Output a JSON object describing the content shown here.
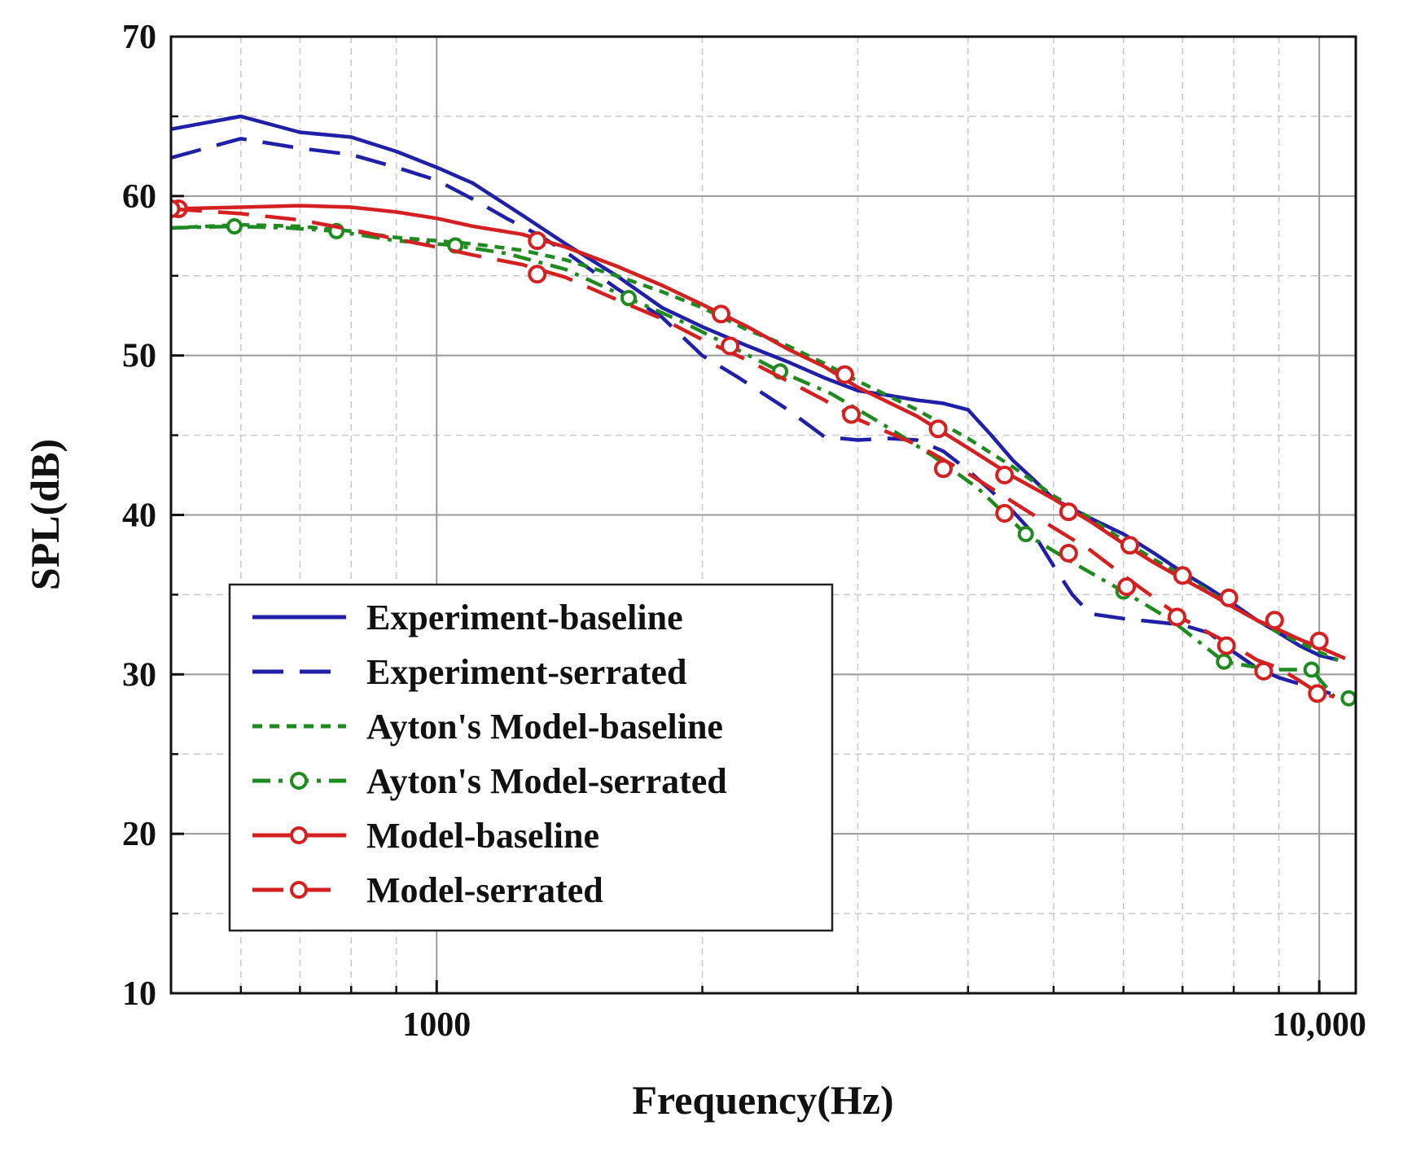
{
  "chart_data": {
    "type": "line",
    "title": "",
    "xlabel": "Frequency(Hz)",
    "ylabel": "SPL(dB)",
    "xscale": "log",
    "xlim": [
      500,
      11000
    ],
    "ylim": [
      10,
      70
    ],
    "grid": true,
    "legend_position": "bottom-left",
    "x_ticks": [
      {
        "value": 1000,
        "label": "1000"
      },
      {
        "value": 10000,
        "label": "10,000"
      }
    ],
    "y_ticks": [
      {
        "value": 10,
        "label": "10"
      },
      {
        "value": 20,
        "label": "20"
      },
      {
        "value": 30,
        "label": "30"
      },
      {
        "value": 40,
        "label": "40"
      },
      {
        "value": 50,
        "label": "50"
      },
      {
        "value": 60,
        "label": "60"
      },
      {
        "value": 70,
        "label": "70"
      }
    ],
    "series": [
      {
        "name": "Experiment-baseline",
        "color": "#1f1fa8",
        "dash": "solid",
        "marker": "none",
        "points": [
          [
            500,
            64.2
          ],
          [
            600,
            65.0
          ],
          [
            700,
            64.0
          ],
          [
            800,
            63.7
          ],
          [
            900,
            62.8
          ],
          [
            1000,
            61.8
          ],
          [
            1100,
            60.8
          ],
          [
            1250,
            58.8
          ],
          [
            1400,
            57.0
          ],
          [
            1600,
            55.0
          ],
          [
            1800,
            53.0
          ],
          [
            2000,
            51.8
          ],
          [
            2250,
            50.6
          ],
          [
            2500,
            49.6
          ],
          [
            2750,
            48.6
          ],
          [
            3000,
            47.8
          ],
          [
            3250,
            47.5
          ],
          [
            3500,
            47.2
          ],
          [
            3750,
            47.0
          ],
          [
            4000,
            46.6
          ],
          [
            4250,
            45.0
          ],
          [
            4500,
            43.4
          ],
          [
            4750,
            42.2
          ],
          [
            5000,
            41.0
          ],
          [
            5500,
            39.8
          ],
          [
            6000,
            38.8
          ],
          [
            6500,
            37.6
          ],
          [
            7000,
            36.4
          ],
          [
            7500,
            35.4
          ],
          [
            8000,
            34.4
          ],
          [
            8500,
            33.4
          ],
          [
            9000,
            32.6
          ],
          [
            9500,
            31.8
          ],
          [
            10000,
            31.2
          ],
          [
            10500,
            30.9
          ]
        ]
      },
      {
        "name": "Experiment-serrated",
        "color": "#1f1fa8",
        "dash": "long-dash",
        "marker": "none",
        "points": [
          [
            500,
            62.4
          ],
          [
            600,
            63.6
          ],
          [
            700,
            63.0
          ],
          [
            800,
            62.6
          ],
          [
            900,
            61.8
          ],
          [
            1000,
            61.0
          ],
          [
            1100,
            59.8
          ],
          [
            1200,
            58.6
          ],
          [
            1300,
            57.6
          ],
          [
            1400,
            56.5
          ],
          [
            1600,
            54.2
          ],
          [
            1800,
            52.4
          ],
          [
            2000,
            50.0
          ],
          [
            2200,
            48.6
          ],
          [
            2500,
            46.6
          ],
          [
            2750,
            44.9
          ],
          [
            3000,
            44.7
          ],
          [
            3250,
            44.8
          ],
          [
            3500,
            44.7
          ],
          [
            3750,
            44.0
          ],
          [
            4000,
            42.8
          ],
          [
            4250,
            41.5
          ],
          [
            4500,
            40.2
          ],
          [
            4750,
            38.8
          ],
          [
            5000,
            36.8
          ],
          [
            5250,
            35.0
          ],
          [
            5500,
            33.8
          ],
          [
            6000,
            33.5
          ],
          [
            6500,
            33.3
          ],
          [
            7000,
            33.1
          ],
          [
            7500,
            32.6
          ],
          [
            8000,
            31.4
          ],
          [
            8500,
            30.4
          ],
          [
            9000,
            29.8
          ],
          [
            9500,
            29.4
          ],
          [
            10000,
            29.0
          ],
          [
            10300,
            28.8
          ]
        ]
      },
      {
        "name": "Ayton's Model-baseline",
        "color": "#1f8a1f",
        "dash": "short-dash",
        "marker": "none",
        "points": [
          [
            500,
            58.0
          ],
          [
            600,
            58.2
          ],
          [
            700,
            58.1
          ],
          [
            800,
            57.8
          ],
          [
            900,
            57.4
          ],
          [
            1000,
            57.2
          ],
          [
            1100,
            57.0
          ],
          [
            1250,
            56.6
          ],
          [
            1400,
            56.0
          ],
          [
            1600,
            55.0
          ],
          [
            1800,
            54.0
          ],
          [
            2000,
            53.0
          ],
          [
            2250,
            51.6
          ],
          [
            2500,
            50.6
          ],
          [
            2750,
            49.5
          ],
          [
            3000,
            48.4
          ],
          [
            3500,
            46.6
          ],
          [
            4000,
            44.8
          ],
          [
            4500,
            43.0
          ],
          [
            5000,
            41.2
          ],
          [
            5500,
            39.8
          ],
          [
            6000,
            38.4
          ],
          [
            6500,
            37.2
          ],
          [
            7000,
            36.2
          ],
          [
            7500,
            35.2
          ],
          [
            8000,
            34.2
          ],
          [
            8500,
            33.4
          ],
          [
            9000,
            32.6
          ],
          [
            9500,
            32.0
          ],
          [
            10000,
            31.4
          ],
          [
            10500,
            30.9
          ]
        ]
      },
      {
        "name": "Ayton's Model-serrated",
        "color": "#1f8a1f",
        "dash": "dash-dot",
        "marker": "circle",
        "points": [
          [
            500,
            58.0
          ],
          [
            590,
            58.1
          ],
          [
            680,
            58.0
          ],
          [
            770,
            57.8
          ],
          [
            900,
            57.2
          ],
          [
            1050,
            56.9
          ],
          [
            1200,
            56.4
          ],
          [
            1400,
            55.4
          ],
          [
            1650,
            53.6
          ],
          [
            1900,
            52.1
          ],
          [
            2150,
            50.6
          ],
          [
            2450,
            49.0
          ],
          [
            2800,
            47.6
          ],
          [
            3200,
            45.7
          ],
          [
            3650,
            43.7
          ],
          [
            4100,
            41.7
          ],
          [
            4650,
            38.8
          ],
          [
            5300,
            36.9
          ],
          [
            6000,
            35.2
          ],
          [
            6800,
            33.4
          ],
          [
            7800,
            30.8
          ],
          [
            8800,
            30.3
          ],
          [
            9800,
            30.3
          ],
          [
            10400,
            28.6
          ]
        ],
        "marker_points": [
          [
            590,
            58.1
          ],
          [
            770,
            57.8
          ],
          [
            1050,
            56.9
          ],
          [
            1650,
            53.6
          ],
          [
            2450,
            49.0
          ],
          [
            4650,
            38.8
          ],
          [
            6000,
            35.2
          ],
          [
            7800,
            30.8
          ],
          [
            9800,
            30.3
          ],
          [
            10800,
            28.5
          ]
        ]
      },
      {
        "name": "Model-baseline",
        "color": "#d42020",
        "dash": "solid",
        "marker": "circle",
        "points": [
          [
            500,
            59.2
          ],
          [
            600,
            59.3
          ],
          [
            700,
            59.4
          ],
          [
            800,
            59.3
          ],
          [
            900,
            59.0
          ],
          [
            1000,
            58.6
          ],
          [
            1100,
            58.1
          ],
          [
            1250,
            57.6
          ],
          [
            1400,
            56.8
          ],
          [
            1600,
            55.6
          ],
          [
            1800,
            54.4
          ],
          [
            2000,
            53.2
          ],
          [
            2250,
            51.8
          ],
          [
            2500,
            50.4
          ],
          [
            2750,
            49.3
          ],
          [
            3000,
            48.0
          ],
          [
            3500,
            46.2
          ],
          [
            4000,
            44.2
          ],
          [
            4500,
            42.4
          ],
          [
            5000,
            41.0
          ],
          [
            5500,
            39.6
          ],
          [
            6000,
            38.2
          ],
          [
            6500,
            37.0
          ],
          [
            7000,
            36.0
          ],
          [
            7500,
            35.1
          ],
          [
            8000,
            34.2
          ],
          [
            8500,
            33.4
          ],
          [
            9000,
            32.8
          ],
          [
            9500,
            32.2
          ],
          [
            10000,
            31.7
          ],
          [
            10700,
            31.0
          ]
        ],
        "marker_points": [
          [
            510,
            59.2
          ],
          [
            1300,
            57.2
          ],
          [
            2100,
            52.6
          ],
          [
            2900,
            48.8
          ],
          [
            3700,
            45.4
          ],
          [
            4400,
            42.5
          ],
          [
            5200,
            40.2
          ],
          [
            6100,
            38.1
          ],
          [
            7000,
            36.2
          ],
          [
            7900,
            34.8
          ],
          [
            8900,
            33.4
          ],
          [
            10000,
            32.1
          ]
        ]
      },
      {
        "name": "Model-serrated",
        "color": "#d42020",
        "dash": "long-dash",
        "marker": "circle",
        "points": [
          [
            500,
            59.2
          ],
          [
            600,
            58.9
          ],
          [
            700,
            58.5
          ],
          [
            800,
            57.9
          ],
          [
            900,
            57.3
          ],
          [
            1000,
            56.8
          ],
          [
            1100,
            56.3
          ],
          [
            1250,
            55.7
          ],
          [
            1400,
            54.9
          ],
          [
            1600,
            53.5
          ],
          [
            1800,
            52.3
          ],
          [
            2000,
            51.0
          ],
          [
            2250,
            49.7
          ],
          [
            2500,
            48.4
          ],
          [
            2750,
            47.2
          ],
          [
            3000,
            46.0
          ],
          [
            3500,
            44.4
          ],
          [
            4000,
            42.6
          ],
          [
            4500,
            40.8
          ],
          [
            5000,
            39.2
          ],
          [
            5500,
            37.8
          ],
          [
            6000,
            36.2
          ],
          [
            6500,
            34.8
          ],
          [
            7000,
            33.5
          ],
          [
            7500,
            32.6
          ],
          [
            8000,
            31.8
          ],
          [
            8500,
            30.9
          ],
          [
            9000,
            30.4
          ],
          [
            9500,
            29.6
          ],
          [
            10000,
            28.8
          ],
          [
            10400,
            28.6
          ]
        ],
        "marker_points": [
          [
            500,
            59.2
          ],
          [
            1300,
            55.1
          ],
          [
            2150,
            50.6
          ],
          [
            2950,
            46.3
          ],
          [
            3750,
            42.9
          ],
          [
            4400,
            40.1
          ],
          [
            5200,
            37.6
          ],
          [
            6050,
            35.5
          ],
          [
            6900,
            33.6
          ],
          [
            7850,
            31.8
          ],
          [
            8650,
            30.2
          ],
          [
            9950,
            28.8
          ]
        ]
      }
    ]
  }
}
